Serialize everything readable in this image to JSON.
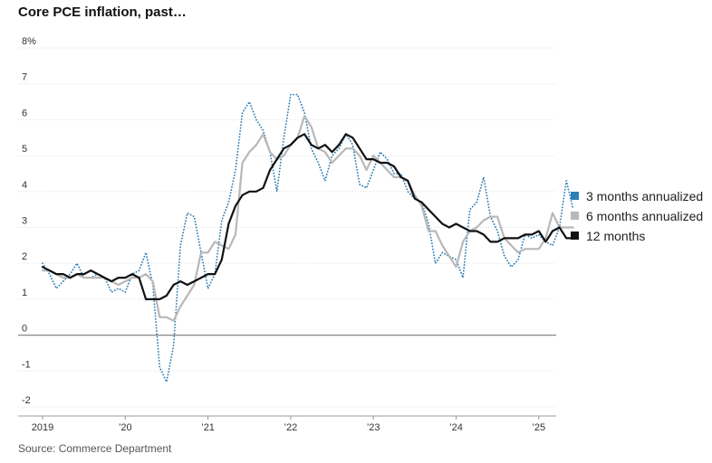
{
  "title": "Core PCE inflation, past…",
  "source": "Source: Commerce Department",
  "colors": {
    "three_month": "#2f7fb6",
    "six_month": "#b8b8b8",
    "twelve_month": "#111111",
    "grid": "#dddddd",
    "zero_line": "#888888"
  },
  "chart_data": {
    "type": "line",
    "title": "Core PCE inflation, past…",
    "ylim": [
      -2,
      8
    ],
    "y_ticks": [
      {
        "value": 8,
        "label": "8%"
      },
      {
        "value": 7,
        "label": "7"
      },
      {
        "value": 6,
        "label": "6"
      },
      {
        "value": 5,
        "label": "5"
      },
      {
        "value": 4,
        "label": "4"
      },
      {
        "value": 3,
        "label": "3"
      },
      {
        "value": 2,
        "label": "2"
      },
      {
        "value": 1,
        "label": "1"
      },
      {
        "value": 0,
        "label": "0"
      },
      {
        "value": -1,
        "label": "-1"
      },
      {
        "value": -2,
        "label": "-2"
      }
    ],
    "x_ticks": [
      {
        "date": "2019-01",
        "label": "2019"
      },
      {
        "date": "2020-01",
        "label": "’20"
      },
      {
        "date": "2021-01",
        "label": "’21"
      },
      {
        "date": "2022-01",
        "label": "’22"
      },
      {
        "date": "2023-01",
        "label": "’23"
      },
      {
        "date": "2024-01",
        "label": "’24"
      },
      {
        "date": "2025-01",
        "label": "’25"
      }
    ],
    "grid": true,
    "legend_position": "right",
    "x_start": "2019-01",
    "series": [
      {
        "name": "3 months annualized",
        "style": "dotted",
        "values": [
          2.0,
          1.7,
          1.3,
          1.5,
          1.7,
          2.0,
          1.6,
          1.6,
          1.7,
          1.6,
          1.2,
          1.3,
          1.2,
          1.7,
          1.8,
          2.3,
          1.4,
          -0.9,
          -1.3,
          -0.3,
          2.5,
          3.4,
          3.3,
          2.3,
          1.3,
          1.7,
          3.2,
          3.7,
          4.6,
          6.2,
          6.5,
          6.0,
          5.7,
          5.1,
          4.0,
          5.5,
          6.7,
          6.7,
          6.2,
          5.2,
          4.8,
          4.3,
          5.0,
          5.2,
          5.6,
          5.3,
          4.2,
          4.1,
          4.6,
          5.1,
          4.9,
          4.5,
          4.5,
          4.0,
          3.8,
          3.7,
          3.1,
          2.0,
          2.3,
          2.2,
          2.1,
          1.6,
          3.5,
          3.7,
          4.4,
          3.3,
          2.9,
          2.2,
          1.9,
          2.1,
          2.8,
          2.7,
          2.8,
          2.6,
          2.5,
          3.0,
          4.3,
          3.5
        ],
        "color": "#2f7fb6"
      },
      {
        "name": "6 months annualized",
        "style": "solid",
        "values": [
          1.8,
          1.8,
          1.7,
          1.6,
          1.6,
          1.7,
          1.6,
          1.6,
          1.6,
          1.6,
          1.5,
          1.4,
          1.5,
          1.6,
          1.6,
          1.7,
          1.5,
          0.5,
          0.5,
          0.4,
          0.8,
          1.1,
          1.4,
          2.3,
          2.3,
          2.6,
          2.5,
          2.4,
          2.8,
          4.8,
          5.1,
          5.3,
          5.6,
          5.1,
          4.9,
          5.0,
          5.3,
          5.5,
          6.1,
          5.8,
          5.2,
          5.1,
          4.8,
          5.0,
          5.2,
          5.2,
          5.0,
          4.6,
          5.0,
          4.8,
          4.6,
          4.4,
          4.4,
          4.3,
          3.9,
          3.6,
          2.9,
          2.9,
          2.5,
          2.2,
          1.9,
          2.6,
          2.9,
          3.0,
          3.2,
          3.3,
          3.3,
          2.7,
          2.5,
          2.3,
          2.4,
          2.4,
          2.4,
          2.7,
          3.4,
          3.0,
          3.0,
          3.0
        ],
        "color": "#b8b8b8"
      },
      {
        "name": "12 months",
        "style": "solid",
        "values": [
          1.9,
          1.8,
          1.7,
          1.7,
          1.6,
          1.7,
          1.7,
          1.8,
          1.7,
          1.6,
          1.5,
          1.6,
          1.6,
          1.7,
          1.6,
          1.0,
          1.0,
          1.0,
          1.1,
          1.4,
          1.5,
          1.4,
          1.5,
          1.6,
          1.7,
          1.7,
          2.1,
          3.1,
          3.6,
          3.9,
          4.0,
          4.0,
          4.1,
          4.6,
          4.9,
          5.2,
          5.3,
          5.5,
          5.6,
          5.3,
          5.2,
          5.3,
          5.1,
          5.3,
          5.6,
          5.5,
          5.2,
          4.9,
          4.9,
          4.8,
          4.8,
          4.7,
          4.4,
          4.3,
          3.8,
          3.7,
          3.5,
          3.3,
          3.1,
          3.0,
          3.1,
          3.0,
          2.9,
          2.9,
          2.8,
          2.6,
          2.6,
          2.7,
          2.7,
          2.7,
          2.8,
          2.8,
          2.9,
          2.6,
          2.9,
          3.0,
          2.7,
          2.7
        ],
        "color": "#111111"
      }
    ]
  }
}
